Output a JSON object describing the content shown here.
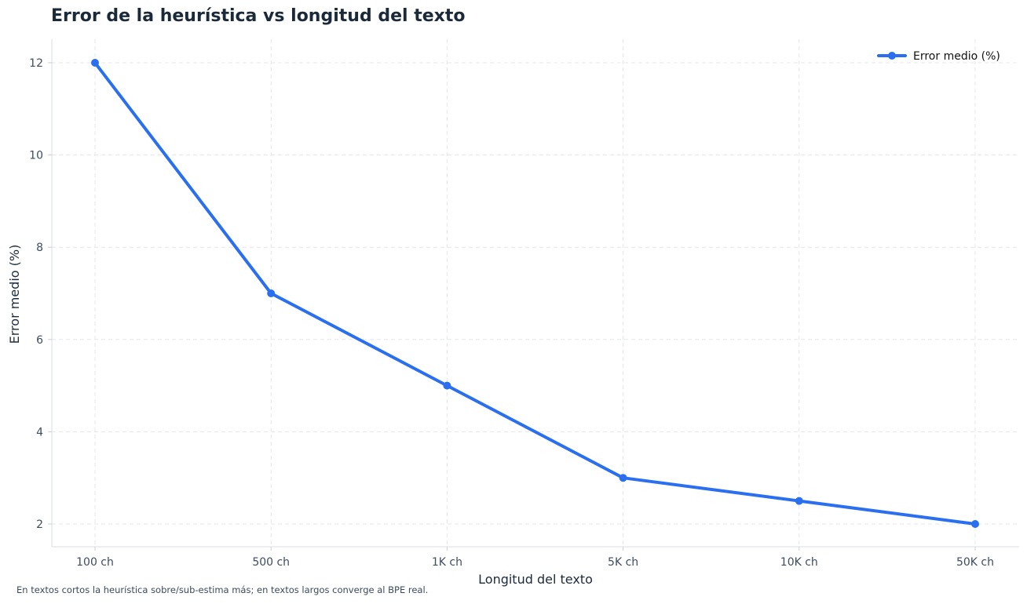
{
  "chart_data": {
    "type": "line",
    "title": "Error de la heurística vs longitud del texto",
    "xlabel": "Longitud del texto",
    "ylabel": "Error medio (%)",
    "categories": [
      "100 ch",
      "500 ch",
      "1K ch",
      "5K ch",
      "10K ch",
      "50K ch"
    ],
    "series": [
      {
        "name": "Error medio (%)",
        "values": [
          12,
          7,
          5,
          3,
          2.5,
          2
        ],
        "color": "#2a6ff0"
      }
    ],
    "yticks": [
      2,
      4,
      6,
      8,
      10,
      12
    ],
    "ylim": [
      1.5,
      12.5
    ],
    "grid": true,
    "legend_position": "top-right",
    "footnote": "En textos cortos la heurística sobre/sub-estima más; en textos largos converge al BPE real."
  }
}
